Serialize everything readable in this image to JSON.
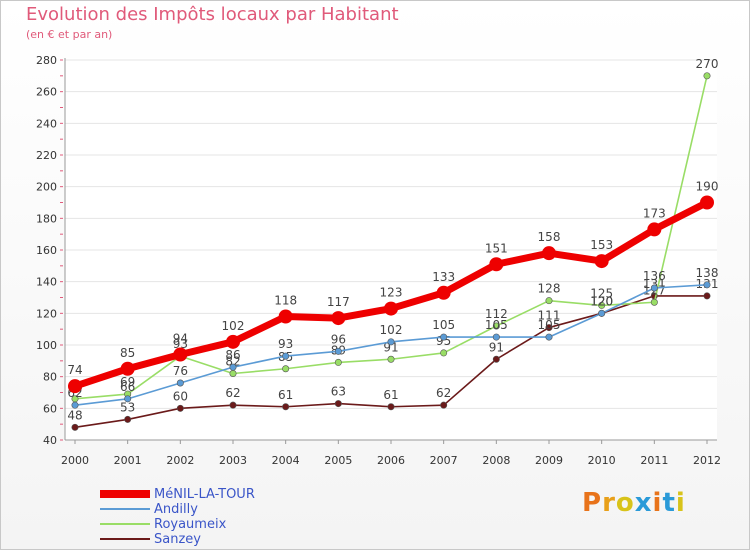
{
  "title": "Evolution des Impôts locaux par Habitant",
  "subtitle": "(en € et par an)",
  "logo": "Proxiti",
  "chart_data": {
    "type": "line",
    "title": "Evolution des Impôts locaux par Habitant",
    "subtitle": "(en € et par an)",
    "x": [
      2000,
      2001,
      2002,
      2003,
      2004,
      2005,
      2006,
      2007,
      2008,
      2009,
      2010,
      2011,
      2012
    ],
    "ylim": [
      40,
      280
    ],
    "yticks": [
      40,
      60,
      80,
      100,
      120,
      140,
      160,
      180,
      200,
      220,
      240,
      260,
      280
    ],
    "series": [
      {
        "name": "MéNIL-LA-TOUR",
        "color": "#ee0000",
        "values": [
          74,
          85,
          94,
          102,
          118,
          117,
          123,
          133,
          151,
          158,
          153,
          173,
          190
        ]
      },
      {
        "name": "Andilly",
        "color": "#5b9bd5",
        "values": [
          62,
          66,
          76,
          86,
          93,
          96,
          102,
          105,
          105,
          105,
          120,
          136,
          138
        ]
      },
      {
        "name": "Royaumeix",
        "color": "#99dd66",
        "values": [
          66,
          69,
          93,
          82,
          85,
          89,
          91,
          95,
          112,
          128,
          125,
          127,
          270
        ]
      },
      {
        "name": "Sanzey",
        "color": "#6b1a1a",
        "values": [
          48,
          53,
          60,
          62,
          61,
          63,
          61,
          62,
          91,
          111,
          120,
          131,
          131
        ]
      }
    ]
  }
}
